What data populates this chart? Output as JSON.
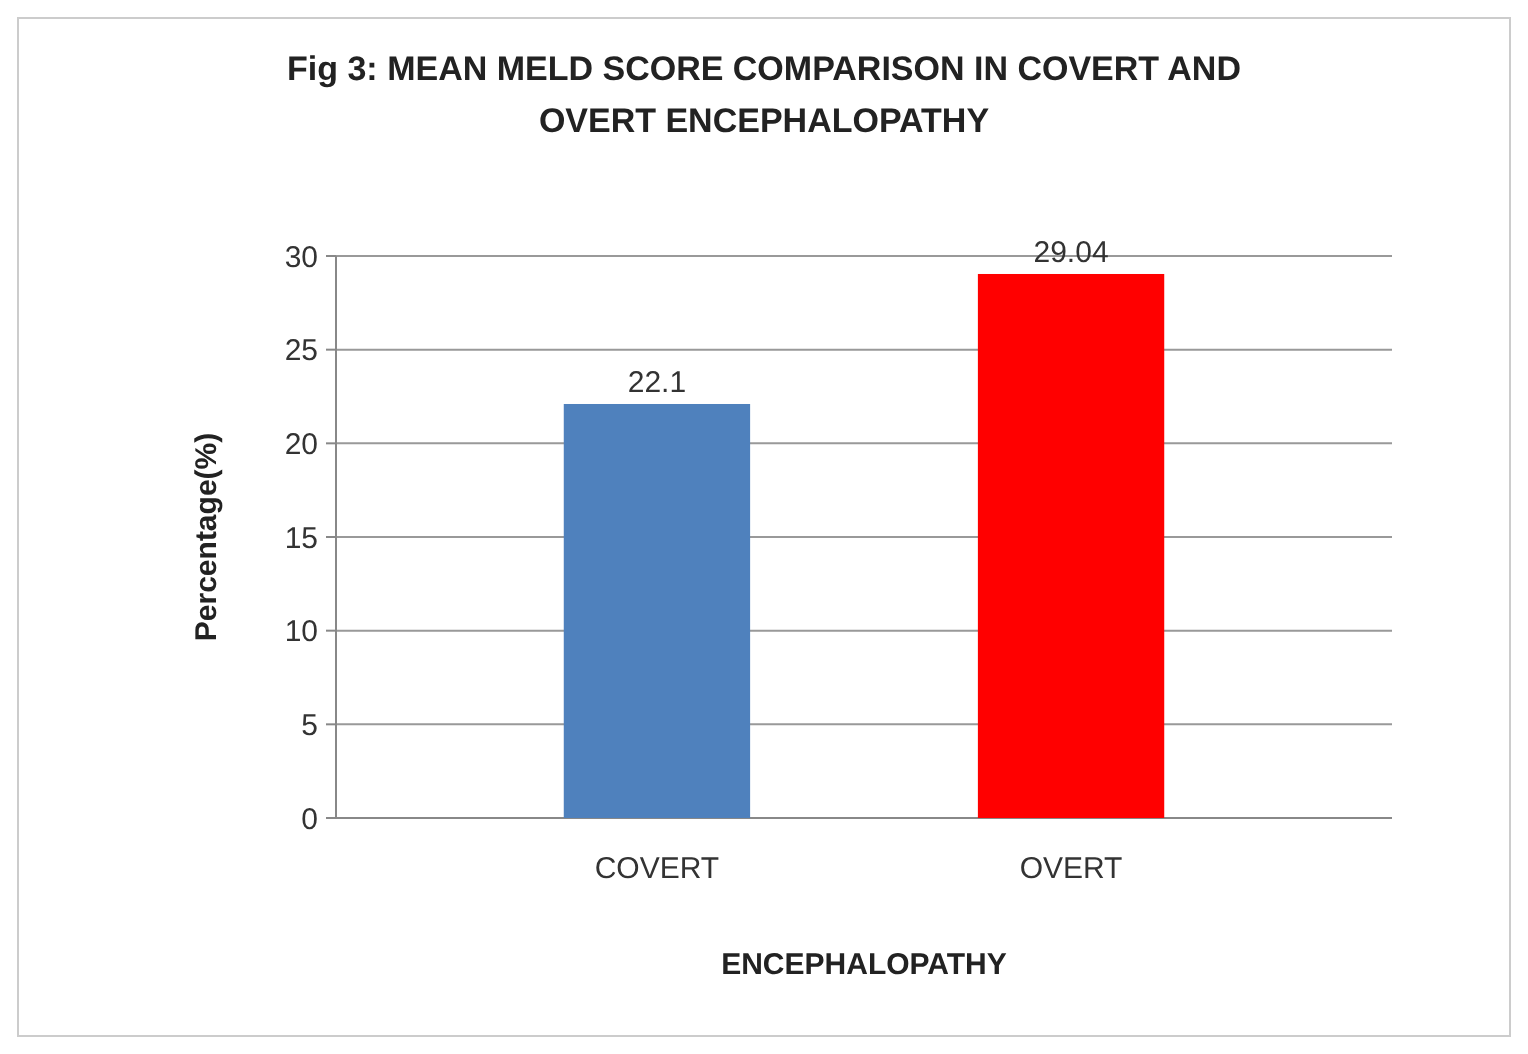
{
  "chart_data": {
    "type": "bar",
    "title": "Fig 3: MEAN MELD SCORE COMPARISON IN COVERT AND OVERT ENCEPHALOPATHY",
    "xlabel": "ENCEPHALOPATHY",
    "ylabel": "Percentage(%)",
    "categories": [
      "COVERT",
      "OVERT"
    ],
    "values": [
      22.1,
      29.04
    ],
    "colors": [
      "#4f81bd",
      "#ff0000"
    ],
    "ylim": [
      0,
      30
    ],
    "yticks": [
      0,
      5,
      10,
      15,
      20,
      25,
      30
    ],
    "grid": "y",
    "data_labels": true
  }
}
